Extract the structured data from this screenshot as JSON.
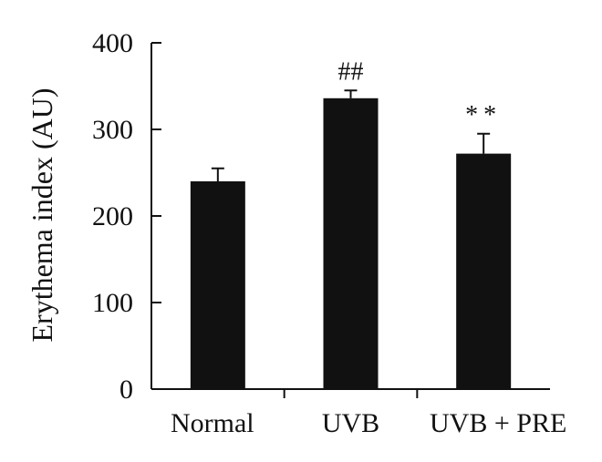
{
  "chart_data": {
    "type": "bar",
    "title": "",
    "xlabel": "",
    "ylabel": "Erythema index (AU)",
    "ylim": [
      0,
      400
    ],
    "yticks": [
      0,
      100,
      200,
      300,
      400
    ],
    "categories": [
      "Normal",
      "UVB",
      "UVB + PRE"
    ],
    "values": [
      240,
      336,
      272
    ],
    "errors": [
      15,
      9,
      23
    ],
    "annotations": [
      "",
      "##",
      "**"
    ],
    "grid": false,
    "legend": "none",
    "bar_color": "#111111"
  }
}
